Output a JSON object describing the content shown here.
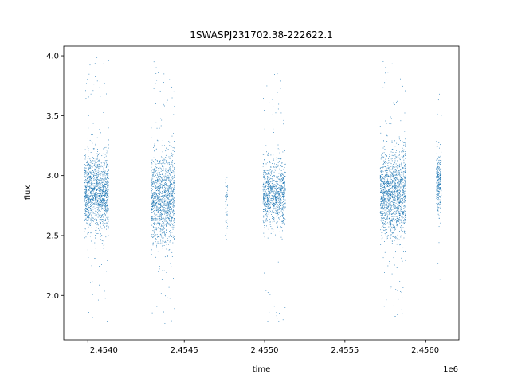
{
  "chart_data": {
    "type": "scatter",
    "title": "1SWASPJ231702.38-222622.1",
    "xlabel": "time",
    "ylabel": "flux",
    "x_offset_label": "1e6",
    "xlim": [
      2453750,
      2456210
    ],
    "ylim": [
      1.63,
      4.08
    ],
    "xticks": [
      2453900,
      2454000,
      2454500,
      2455000,
      2455500,
      2456000
    ],
    "xtick_labels": [
      "",
      "2.4540",
      "2.4545",
      "2.4550",
      "2.4555",
      "2.4560"
    ],
    "yticks": [
      2.0,
      2.5,
      3.0,
      3.5,
      4.0
    ],
    "ytick_labels": [
      "2.0",
      "2.5",
      "3.0",
      "3.5",
      "4.0"
    ],
    "grid": false,
    "marker_color": "#1f77b4",
    "clusters": [
      {
        "x_range": [
          2453880,
          2454030
        ],
        "center": 2.85,
        "spread": 0.16,
        "n": 1400,
        "min": 1.78,
        "max": 3.99
      },
      {
        "x_range": [
          2454295,
          2454440
        ],
        "center": 2.8,
        "spread": 0.18,
        "n": 1300,
        "min": 1.74,
        "max": 4.0
      },
      {
        "x_range": [
          2454755,
          2454770
        ],
        "center": 2.78,
        "spread": 0.15,
        "n": 60,
        "min": 2.45,
        "max": 3.18
      },
      {
        "x_range": [
          2454990,
          2455130
        ],
        "center": 2.85,
        "spread": 0.13,
        "n": 1000,
        "min": 1.75,
        "max": 3.87
      },
      {
        "x_range": [
          2455720,
          2455880
        ],
        "center": 2.84,
        "spread": 0.18,
        "n": 1500,
        "min": 1.8,
        "max": 4.0
      },
      {
        "x_range": [
          2456070,
          2456100
        ],
        "center": 2.95,
        "spread": 0.12,
        "n": 300,
        "min": 2.05,
        "max": 3.83
      }
    ]
  }
}
